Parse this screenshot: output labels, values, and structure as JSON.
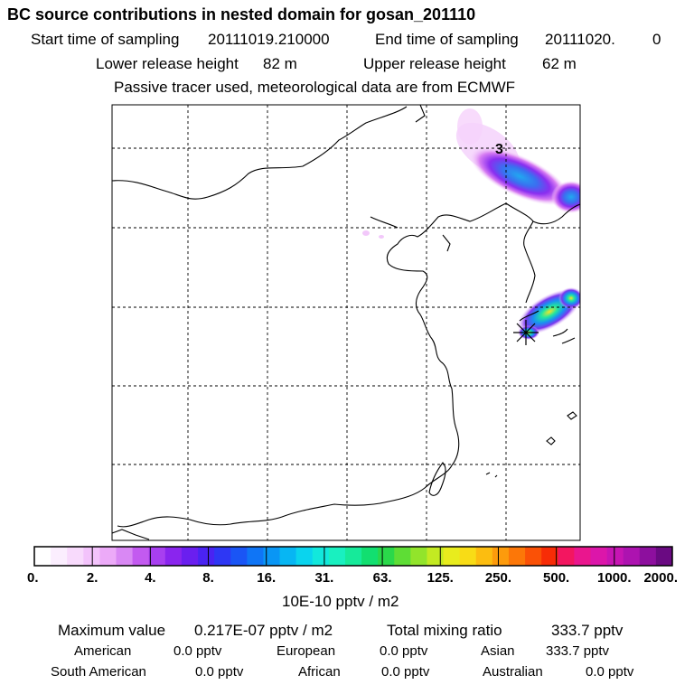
{
  "header": {
    "title": "BC  source contributions in nested domain for gosan_201110",
    "start_label": "Start time of sampling",
    "start_value": "20111019.210000",
    "end_label": "End time of sampling",
    "end_value": "20111020.",
    "end_extra": "0",
    "lower_label": "Lower release height",
    "lower_value": "82 m",
    "upper_label": "Upper release height",
    "upper_value": "62 m",
    "note": "Passive tracer used, meteorological data are from ECMWF"
  },
  "map": {
    "plume_label": "3"
  },
  "colorbar": {
    "tick_labels": [
      "0.",
      "2.",
      "4.",
      "8.",
      "16.",
      "31.",
      "63.",
      "125.",
      "250.",
      "500.",
      "1000.",
      "2000."
    ],
    "unit": "10E-10 pptv / m2",
    "colors": [
      "#ffffff",
      "#fbeefe",
      "#f8dafc",
      "#f3c3fb",
      "#ecaaf8",
      "#d988f4",
      "#c35af0",
      "#a83ff0",
      "#8a25ee",
      "#6a1fef",
      "#4a23f2",
      "#2e37f4",
      "#1a55f5",
      "#0f75f6",
      "#0996f5",
      "#07b6f3",
      "#0ad4ee",
      "#12e8dc",
      "#19f0c0",
      "#16ea9a",
      "#12df70",
      "#2ad84a",
      "#5edd35",
      "#92e42b",
      "#c3ea22",
      "#e8ec1d",
      "#f8dc16",
      "#fcbd10",
      "#fd9b0c",
      "#fc7708",
      "#fa5106",
      "#f72c06",
      "#f31660",
      "#ea168e",
      "#dc16aa",
      "#c715b3",
      "#ad13b0",
      "#8d0f9e",
      "#6a0a82"
    ]
  },
  "stats": {
    "max_label": "Maximum value",
    "max_value": "0.217E-07 pptv / m2",
    "total_label": "Total mixing ratio",
    "total_value": "333.7 pptv",
    "regions": [
      {
        "name": "American",
        "value": "0.0 pptv"
      },
      {
        "name": "European",
        "value": "0.0 pptv"
      },
      {
        "name": "Asian",
        "value": "333.7 pptv"
      },
      {
        "name": "South American",
        "value": "0.0 pptv"
      },
      {
        "name": "African",
        "value": "0.0 pptv"
      },
      {
        "name": "Australian",
        "value": "0.0 pptv"
      }
    ]
  },
  "chart_data": {
    "type": "heatmap",
    "title": "BC  source contributions in nested domain for gosan_201110",
    "colorbar_levels": [
      0,
      2,
      4,
      8,
      16,
      31,
      63,
      125,
      250,
      500,
      1000,
      2000
    ],
    "colorbar_unit": "10E-10 pptv / m2",
    "max_value": "0.217E-07 pptv / m2",
    "total_mixing_ratio": "333.7 pptv",
    "plume_contour_label": "3",
    "receptor": "gosan",
    "grid": true
  }
}
